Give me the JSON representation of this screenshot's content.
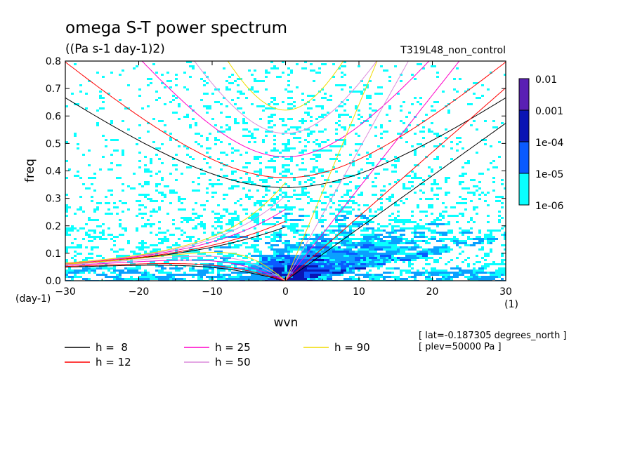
{
  "chart_data": {
    "type": "heatmap",
    "title": "omega S-T power spectrum",
    "subtitle": "((Pa s-1 day-1)2)",
    "run_label": "T319L48_non_control",
    "xlabel": "wvn",
    "ylabel": "freq",
    "x_unit": "(1)",
    "y_unit": "(day-1)",
    "xlim": [
      -30,
      30
    ],
    "ylim": [
      0,
      0.8
    ],
    "x_ticks": [
      -30,
      -20,
      -10,
      0,
      10,
      20,
      30
    ],
    "y_ticks": [
      0.0,
      0.1,
      0.2,
      0.3,
      0.4,
      0.5,
      0.6,
      0.7,
      0.8
    ],
    "x_tick_labels": [
      "−30",
      "−20",
      "−10",
      "0",
      "10",
      "20",
      "30"
    ],
    "y_tick_labels": [
      "0.0",
      "0.1",
      "0.2",
      "0.3",
      "0.4",
      "0.5",
      "0.6",
      "0.7",
      "0.8"
    ],
    "colorbar": {
      "labels": [
        "0.01",
        "0.001",
        "1e-04",
        "1e-05",
        "1e-06"
      ],
      "colors": [
        "#5a1fb4",
        "#0a14b4",
        "#0a5aff",
        "#0aa0ff",
        "#0affff"
      ]
    },
    "field_colors": {
      "white": "#ffffff",
      "cyan": "#0affff",
      "light_blue": "#0aa0ff",
      "blue": "#0a5aff",
      "dark_blue": "#0a14b4"
    },
    "dispersion_curves": [
      {
        "name": "h =  8",
        "h": 8,
        "color": "#000000"
      },
      {
        "name": "h = 12",
        "h": 12,
        "color": "#ff0000"
      },
      {
        "name": "h = 25",
        "h": 25,
        "color": "#ff00c8"
      },
      {
        "name": "h = 50",
        "h": 50,
        "color": "#dc8cdc"
      },
      {
        "name": "h = 90",
        "h": 90,
        "color": "#f0dc00"
      }
    ],
    "notes": [
      "[ lat=-0.187305 degrees_north ]",
      "[ plev=50000 Pa ]"
    ]
  }
}
